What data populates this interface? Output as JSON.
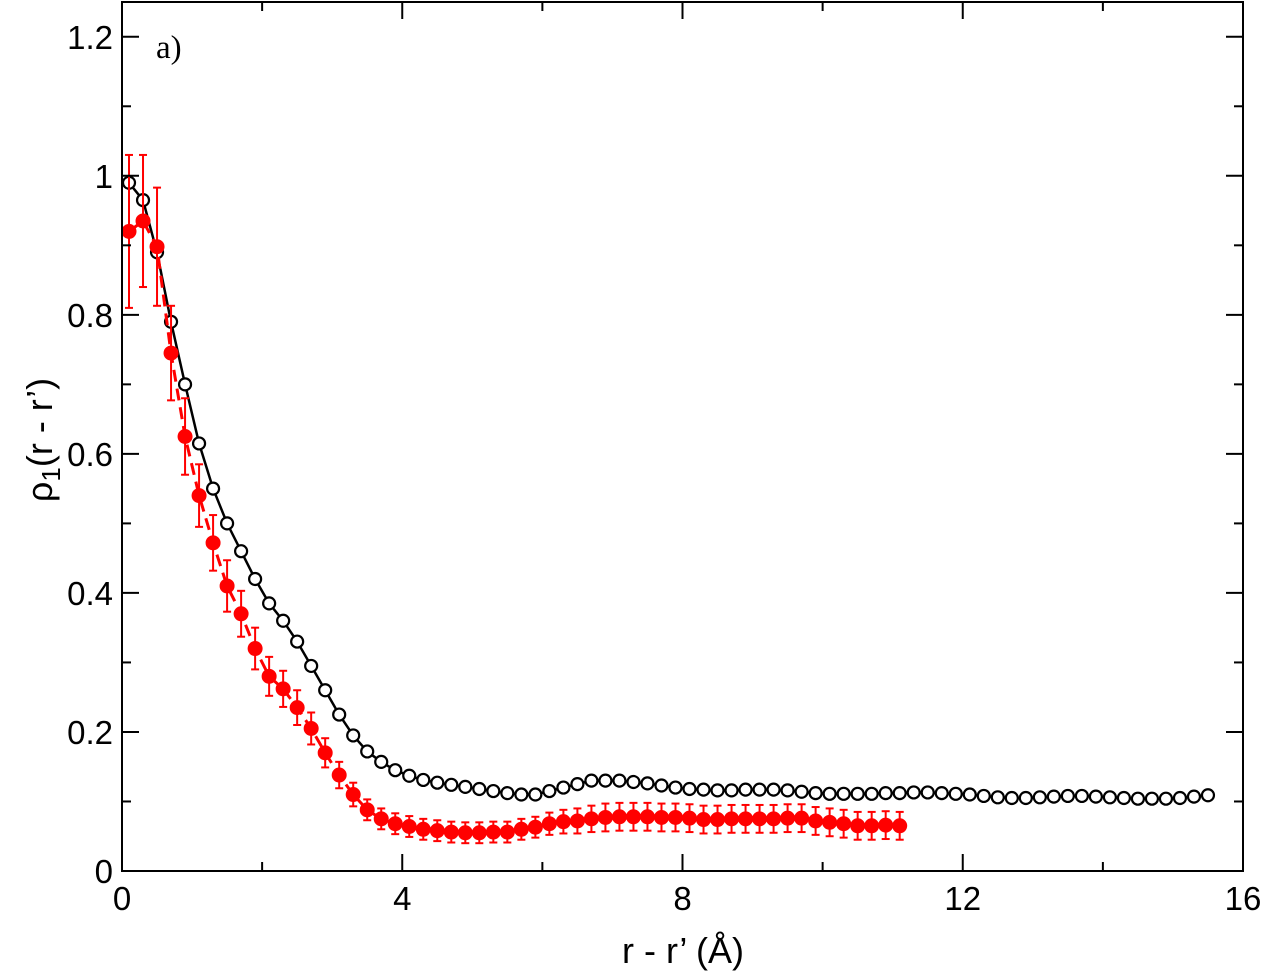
{
  "chart_data": {
    "type": "scatter",
    "panel_label": "a)",
    "xlabel": "r - r’  (Å)",
    "ylabel_main": "ρ",
    "ylabel_sub": "1",
    "ylabel_rest": "(r - r’)",
    "xlim": [
      0,
      16
    ],
    "ylim": [
      0,
      1.25
    ],
    "xticks": [
      0,
      4,
      8,
      12,
      16
    ],
    "xtick_labels": [
      "0",
      "4",
      "8",
      "12",
      "16"
    ],
    "yticks": [
      0,
      0.2,
      0.4,
      0.6,
      0.8,
      1.0,
      1.2
    ],
    "ytick_labels": [
      "0",
      "0.2",
      "0.4",
      "0.6",
      "0.8",
      "1",
      "1.2"
    ],
    "grid": false,
    "series": [
      {
        "style": "open-circle-solid-line",
        "color": "#000000",
        "x": [
          0.1,
          0.3,
          0.5,
          0.7,
          0.9,
          1.1,
          1.3,
          1.5,
          1.7,
          1.9,
          2.1,
          2.3,
          2.5,
          2.7,
          2.9,
          3.1,
          3.3,
          3.5,
          3.7,
          3.9,
          4.1,
          4.3,
          4.5,
          4.7,
          4.9,
          5.1,
          5.3,
          5.5,
          5.7,
          5.9,
          6.1,
          6.3,
          6.5,
          6.7,
          6.9,
          7.1,
          7.3,
          7.5,
          7.7,
          7.9,
          8.1,
          8.3,
          8.5,
          8.7,
          8.9,
          9.1,
          9.3,
          9.5,
          9.7,
          9.9,
          10.1,
          10.3,
          10.5,
          10.7,
          10.9,
          11.1,
          11.3,
          11.5,
          11.7,
          11.9,
          12.1,
          12.3,
          12.5,
          12.7,
          12.9,
          13.1,
          13.3,
          13.5,
          13.7,
          13.9,
          14.1,
          14.3,
          14.5,
          14.7,
          14.9,
          15.1,
          15.3,
          15.5
        ],
        "y": [
          0.99,
          0.965,
          0.89,
          0.79,
          0.7,
          0.615,
          0.55,
          0.5,
          0.46,
          0.42,
          0.385,
          0.36,
          0.33,
          0.295,
          0.26,
          0.225,
          0.195,
          0.172,
          0.157,
          0.145,
          0.137,
          0.131,
          0.127,
          0.124,
          0.121,
          0.118,
          0.115,
          0.112,
          0.11,
          0.11,
          0.115,
          0.12,
          0.125,
          0.13,
          0.13,
          0.13,
          0.128,
          0.126,
          0.123,
          0.12,
          0.118,
          0.117,
          0.116,
          0.116,
          0.117,
          0.117,
          0.117,
          0.116,
          0.114,
          0.112,
          0.111,
          0.111,
          0.111,
          0.111,
          0.112,
          0.112,
          0.113,
          0.113,
          0.112,
          0.111,
          0.11,
          0.108,
          0.106,
          0.105,
          0.105,
          0.106,
          0.107,
          0.108,
          0.108,
          0.107,
          0.106,
          0.105,
          0.104,
          0.104,
          0.104,
          0.105,
          0.107,
          0.109
        ]
      },
      {
        "style": "filled-circle-dashed-line-errorbars",
        "color": "#ff0000",
        "x": [
          0.1,
          0.3,
          0.5,
          0.7,
          0.9,
          1.1,
          1.3,
          1.5,
          1.7,
          1.9,
          2.1,
          2.3,
          2.5,
          2.7,
          2.9,
          3.1,
          3.3,
          3.5,
          3.7,
          3.9,
          4.1,
          4.3,
          4.5,
          4.7,
          4.9,
          5.1,
          5.3,
          5.5,
          5.7,
          5.9,
          6.1,
          6.3,
          6.5,
          6.7,
          6.9,
          7.1,
          7.3,
          7.5,
          7.7,
          7.9,
          8.1,
          8.3,
          8.5,
          8.7,
          8.9,
          9.1,
          9.3,
          9.5,
          9.7,
          9.9,
          10.1,
          10.3,
          10.5,
          10.7,
          10.9,
          11.1
        ],
        "y": [
          0.92,
          0.935,
          0.898,
          0.745,
          0.625,
          0.54,
          0.472,
          0.41,
          0.37,
          0.32,
          0.28,
          0.262,
          0.235,
          0.205,
          0.17,
          0.138,
          0.11,
          0.088,
          0.075,
          0.068,
          0.064,
          0.06,
          0.058,
          0.056,
          0.055,
          0.055,
          0.056,
          0.056,
          0.06,
          0.063,
          0.068,
          0.071,
          0.072,
          0.075,
          0.077,
          0.078,
          0.078,
          0.078,
          0.077,
          0.077,
          0.076,
          0.074,
          0.074,
          0.075,
          0.075,
          0.075,
          0.075,
          0.076,
          0.076,
          0.072,
          0.07,
          0.068,
          0.065,
          0.065,
          0.066,
          0.065
        ],
        "yerr": [
          0.11,
          0.095,
          0.085,
          0.068,
          0.055,
          0.045,
          0.04,
          0.037,
          0.033,
          0.03,
          0.028,
          0.026,
          0.025,
          0.023,
          0.021,
          0.019,
          0.017,
          0.015,
          0.015,
          0.015,
          0.015,
          0.015,
          0.015,
          0.015,
          0.015,
          0.015,
          0.015,
          0.015,
          0.015,
          0.015,
          0.016,
          0.017,
          0.018,
          0.019,
          0.02,
          0.02,
          0.02,
          0.02,
          0.02,
          0.02,
          0.02,
          0.02,
          0.02,
          0.02,
          0.02,
          0.02,
          0.02,
          0.02,
          0.02,
          0.02,
          0.02,
          0.02,
          0.02,
          0.02,
          0.02,
          0.02
        ]
      }
    ]
  }
}
